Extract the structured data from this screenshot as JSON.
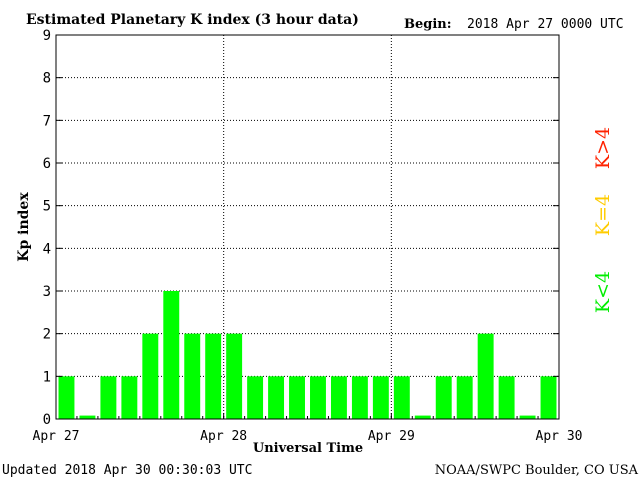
{
  "chart_data": {
    "type": "bar",
    "title": "Estimated Planetary K index (3 hour data)",
    "begin_label": "Begin:",
    "begin_value": "2018 Apr 27 0000 UTC",
    "xlabel": "Universal Time",
    "ylabel": "Kp index",
    "ylim": [
      0,
      9
    ],
    "yticks": [
      "0",
      "1",
      "2",
      "3",
      "4",
      "5",
      "6",
      "7",
      "8",
      "9"
    ],
    "xticks": [
      "Apr 27",
      "Apr 28",
      "Apr 29",
      "Apr 30"
    ],
    "grid": true,
    "values": [
      1,
      0,
      1,
      1,
      2,
      3,
      2,
      2,
      2,
      1,
      1,
      1,
      1,
      1,
      1,
      1,
      1,
      0,
      1,
      1,
      2,
      1,
      0,
      1
    ],
    "bar_color": "#00ff00",
    "legend": [
      {
        "label": "K>4",
        "color": "#ff2200"
      },
      {
        "label": "K=4",
        "color": "#ffcc00"
      },
      {
        "label": "K<4",
        "color": "#00ee00"
      }
    ],
    "legend_position": "right"
  },
  "footer": {
    "updated": "Updated 2018 Apr 30 00:30:03 UTC",
    "credit": "NOAA/SWPC Boulder, CO USA"
  }
}
